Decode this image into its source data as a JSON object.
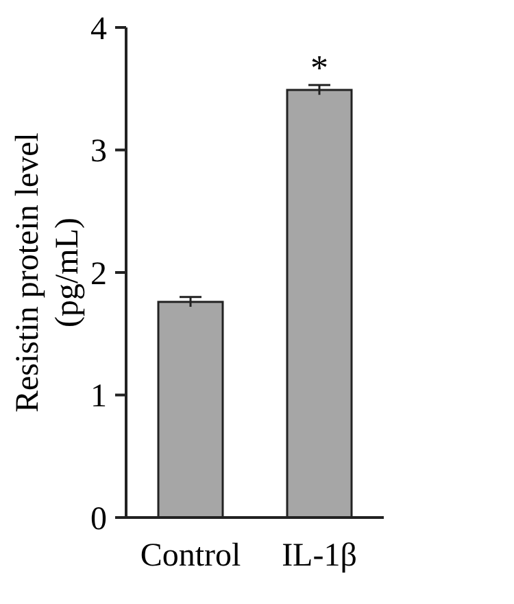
{
  "chart_data": {
    "type": "bar",
    "ylabel": "Resistin protein level (pg/mL)",
    "categories": [
      "Control",
      "IL-1β"
    ],
    "values": [
      1.76,
      3.49
    ],
    "errors": [
      0.04,
      0.04
    ],
    "color": "#a6a6a6",
    "ylim": [
      0,
      4
    ],
    "yticks": [
      0,
      1,
      2,
      3,
      4
    ],
    "annotations": [
      {
        "text": "*",
        "x": "IL-1β",
        "y": 3.53
      }
    ]
  }
}
